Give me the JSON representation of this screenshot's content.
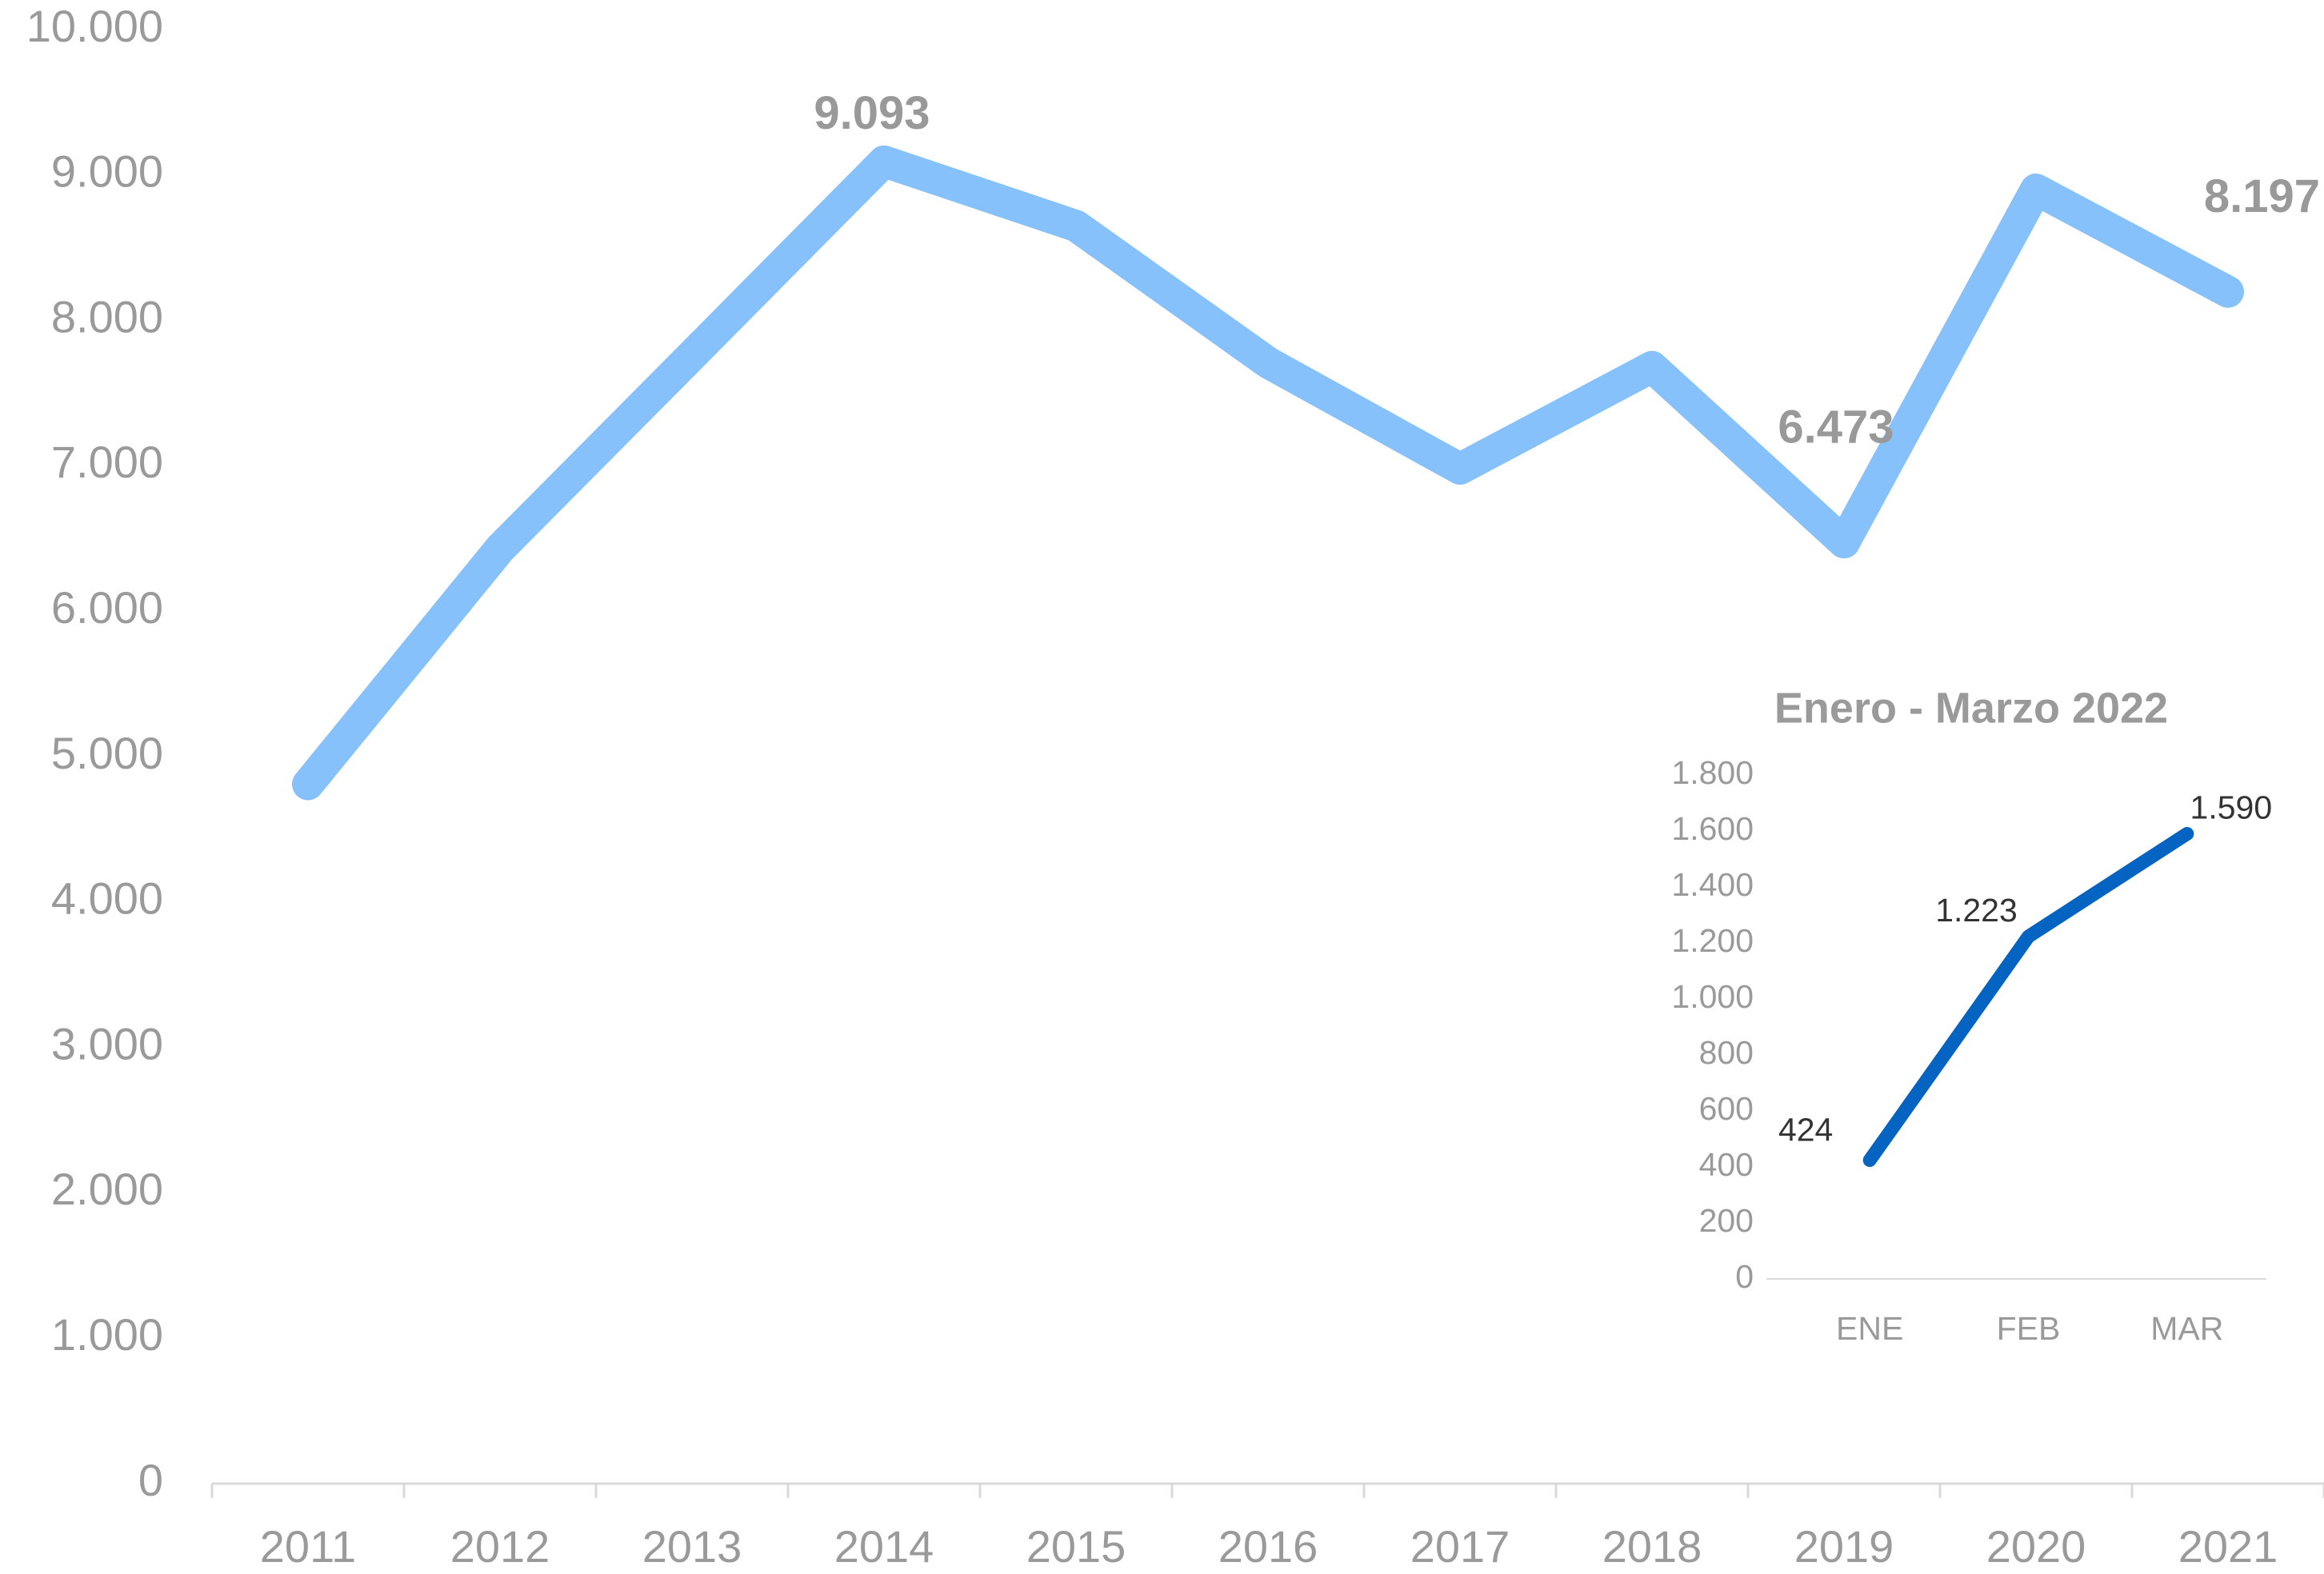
{
  "chart_data": [
    {
      "type": "line",
      "categories": [
        "2011",
        "2012",
        "2013",
        "2014",
        "2015",
        "2016",
        "2017",
        "2018",
        "2019",
        "2020",
        "2021"
      ],
      "values": [
        4810,
        6430,
        7760,
        9093,
        8650,
        7710,
        6980,
        7680,
        6473,
        8900,
        8197
      ],
      "value_labels": [
        null,
        null,
        null,
        "9.093",
        null,
        null,
        null,
        null,
        "6.473",
        null,
        "8.197"
      ],
      "color": "#86c1fc",
      "ylim": [
        0,
        10000
      ],
      "yticks": [
        0,
        {
          "value": 1000,
          "label": "1.000"
        },
        {
          "value": 2000,
          "label": "2.000"
        },
        {
          "value": 3000,
          "label": "3.000"
        },
        {
          "value": 4000,
          "label": "4.000"
        },
        {
          "value": 5000,
          "label": "5.000"
        },
        {
          "value": 6000,
          "label": "6.000"
        },
        {
          "value": 7000,
          "label": "7.000"
        },
        {
          "value": 8000,
          "label": "8.000"
        },
        {
          "value": 9000,
          "label": "9.000"
        },
        {
          "value": 10000,
          "label": "10.000"
        }
      ]
    },
    {
      "type": "line",
      "title": "Enero - Marzo 2022",
      "categories": [
        "ENE",
        "FEB",
        "MAR"
      ],
      "values": [
        424,
        1223,
        1590
      ],
      "value_labels": [
        "424",
        "1.223",
        "1.590"
      ],
      "color": "#0563c1",
      "ylim": [
        0,
        1800
      ],
      "yticks": [
        0,
        200,
        400,
        600,
        800,
        {
          "value": 1000,
          "label": "1.000"
        },
        {
          "value": 1200,
          "label": "1.200"
        },
        {
          "value": 1400,
          "label": "1.400"
        },
        {
          "value": 1600,
          "label": "1.600"
        },
        {
          "value": 1800,
          "label": "1.800"
        }
      ]
    }
  ]
}
